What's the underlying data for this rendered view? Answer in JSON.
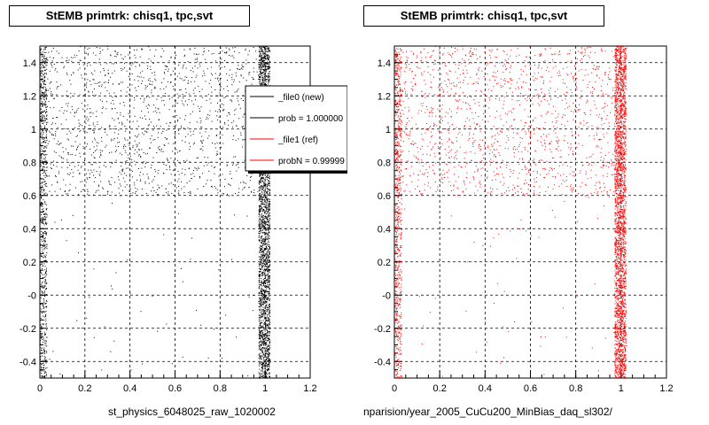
{
  "panels": [
    {
      "title": "StEMB primtrk: chisq1, tpc,svt",
      "xaxis_title": "st_physics_6048025_raw_1020002",
      "color": "#000000"
    },
    {
      "title": "StEMB primtrk: chisq1, tpc,svt",
      "xaxis_title": "nparision/year_2005_CuCu200_MinBias_daq_sl302/",
      "color": "#ff0000"
    }
  ],
  "legend": {
    "entries": [
      {
        "label": "_file0 (new)",
        "color": "#000000"
      },
      {
        "label": "prob = 1.000000",
        "color": "#000000"
      },
      {
        "label": "_file1 (ref)",
        "color": "#ff0000"
      },
      {
        "label": "probN = 0.99999",
        "color": "#ff0000"
      }
    ]
  },
  "chart_data": [
    {
      "type": "scatter",
      "title": "StEMB primtrk: chisq1, tpc,svt",
      "xlabel": "st_physics_6048025_raw_1020002",
      "ylabel": "",
      "xlim": [
        0,
        1.2
      ],
      "ylim": [
        -0.5,
        1.5
      ],
      "xticks": [
        "0",
        "0.2",
        "0.4",
        "0.6",
        "0.8",
        "1",
        "1.2"
      ],
      "yticks": [
        "-0.4",
        "-0.2",
        "-0",
        "0.2",
        "0.4",
        "0.6",
        "0.8",
        "1",
        "1.2",
        "1.4"
      ],
      "grid": true,
      "series": [
        {
          "name": "_file0 (new)",
          "color": "#000000",
          "bands": [
            {
              "x": [
                0.0,
                0.03
              ],
              "y": [
                -0.5,
                1.5
              ],
              "density": "high"
            },
            {
              "x": [
                0.97,
                1.02
              ],
              "y": [
                -0.5,
                1.5
              ],
              "density": "very-high"
            },
            {
              "x": [
                0.0,
                1.0
              ],
              "y": [
                0.6,
                1.5
              ],
              "density": "medium"
            },
            {
              "x": [
                0.0,
                1.0
              ],
              "y": [
                -0.5,
                0.6
              ],
              "density": "sparse"
            }
          ]
        }
      ]
    },
    {
      "type": "scatter",
      "title": "StEMB primtrk: chisq1, tpc,svt",
      "xlabel": "nparision/year_2005_CuCu200_MinBias_daq_sl302/",
      "ylabel": "",
      "xlim": [
        0,
        1.2
      ],
      "ylim": [
        -0.5,
        1.5
      ],
      "xticks": [
        "0",
        "0.2",
        "0.4",
        "0.6",
        "0.8",
        "1",
        "1.2"
      ],
      "yticks": [
        "-0.4",
        "-0.2",
        "-0",
        "0.2",
        "0.4",
        "0.6",
        "0.8",
        "1",
        "1.2",
        "1.4"
      ],
      "grid": true,
      "series": [
        {
          "name": "_file1 (ref)",
          "color": "#ff0000",
          "bands": [
            {
              "x": [
                0.0,
                0.03
              ],
              "y": [
                -0.5,
                1.5
              ],
              "density": "high"
            },
            {
              "x": [
                0.97,
                1.02
              ],
              "y": [
                -0.5,
                1.5
              ],
              "density": "very-high"
            },
            {
              "x": [
                0.0,
                1.0
              ],
              "y": [
                0.6,
                1.5
              ],
              "density": "medium"
            },
            {
              "x": [
                0.0,
                1.0
              ],
              "y": [
                -0.5,
                0.6
              ],
              "density": "sparse"
            }
          ]
        }
      ]
    }
  ]
}
